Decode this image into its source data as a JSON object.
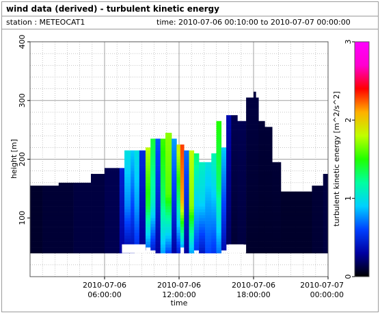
{
  "header": {
    "title": "wind data (derived) - turbulent kinetic energy",
    "station_label": "station : METEOCAT1",
    "time_label": "time: 2010-07-06 00:10:00 to 2010-07-07 00:00:00"
  },
  "colors": {
    "background": "#ffffff",
    "plot_background": "#ffffff",
    "grid": "#a0a0a0",
    "colormap": [
      "#000000",
      "#0000a0",
      "#0040ff",
      "#00d0ff",
      "#00ffa0",
      "#20ff00",
      "#c0ff00",
      "#ffb000",
      "#ff0000",
      "#ff00d0",
      "#ff00ff"
    ]
  },
  "chart_data": {
    "type": "heatmap",
    "title": "wind data (derived) - turbulent kinetic energy",
    "xlabel": "time",
    "ylabel": "height [m]",
    "colorbar_label": "turbulent kinetic energy [m^2/s^2]",
    "x_unit": "hours since 2010-07-06 00:00:00",
    "xlim": [
      0,
      24
    ],
    "ylim": [
      0,
      400
    ],
    "clim": [
      0,
      3
    ],
    "grid": true,
    "x_ticks": [
      {
        "value": 6,
        "date": "2010-07-06",
        "clock": "06:00:00"
      },
      {
        "value": 12,
        "date": "2010-07-06",
        "clock": "12:00:00"
      },
      {
        "value": 18,
        "date": "2010-07-06",
        "clock": "18:00:00"
      },
      {
        "value": 24,
        "date": "2010-07-07",
        "clock": "00:00:00"
      }
    ],
    "y_ticks": [
      {
        "value": 100,
        "label": "100"
      },
      {
        "value": 200,
        "label": "200"
      },
      {
        "value": 300,
        "label": "300"
      },
      {
        "value": 400,
        "label": "400"
      }
    ],
    "colorbar_ticks": [
      {
        "value": 0,
        "label": "0"
      },
      {
        "value": 1,
        "label": "1"
      },
      {
        "value": 2,
        "label": "2"
      },
      {
        "value": 3,
        "label": "3"
      }
    ],
    "columns": [
      {
        "x0": 0.0,
        "x1": 1.0,
        "bottom": 40,
        "top": 155,
        "profile": [
          [
            40,
            0.08
          ],
          [
            155,
            0.08
          ]
        ]
      },
      {
        "x0": 1.0,
        "x1": 2.3,
        "bottom": 40,
        "top": 155,
        "profile": [
          [
            40,
            0.1
          ],
          [
            155,
            0.1
          ]
        ]
      },
      {
        "x0": 2.3,
        "x1": 3.5,
        "bottom": 40,
        "top": 160,
        "profile": [
          [
            40,
            0.1
          ],
          [
            160,
            0.1
          ]
        ]
      },
      {
        "x0": 3.5,
        "x1": 4.9,
        "bottom": 40,
        "top": 160,
        "profile": [
          [
            40,
            0.12
          ],
          [
            160,
            0.12
          ]
        ]
      },
      {
        "x0": 4.9,
        "x1": 6.0,
        "bottom": 40,
        "top": 175,
        "profile": [
          [
            40,
            0.12
          ],
          [
            175,
            0.12
          ]
        ]
      },
      {
        "x0": 6.0,
        "x1": 7.2,
        "bottom": 40,
        "top": 185,
        "profile": [
          [
            40,
            0.15
          ],
          [
            185,
            0.15
          ]
        ]
      },
      {
        "x0": 7.2,
        "x1": 7.6,
        "bottom": 40,
        "top": 185,
        "profile": [
          [
            40,
            0.3
          ],
          [
            185,
            0.45
          ]
        ]
      },
      {
        "x0": 7.6,
        "x1": 8.1,
        "bottom": 40,
        "top": 215,
        "profile": [
          [
            40,
            0.3
          ],
          [
            120,
            0.75
          ],
          [
            215,
            1.0
          ]
        ]
      },
      {
        "x0": 8.1,
        "x1": 8.4,
        "bottom": 40,
        "top": 215,
        "profile": [
          [
            40,
            0.35
          ],
          [
            120,
            0.6
          ],
          [
            215,
            0.9
          ]
        ]
      },
      {
        "x0": 8.4,
        "x1": 8.8,
        "bottom": 45,
        "top": 215,
        "profile": [
          [
            45,
            0.5
          ],
          [
            120,
            0.8
          ],
          [
            215,
            1.0
          ]
        ]
      },
      {
        "x0": 8.8,
        "x1": 9.3,
        "bottom": 45,
        "top": 215,
        "profile": [
          [
            45,
            0.25
          ],
          [
            215,
            0.5
          ]
        ]
      },
      {
        "x0": 9.3,
        "x1": 9.7,
        "bottom": 50,
        "top": 220,
        "profile": [
          [
            50,
            0.7
          ],
          [
            120,
            1.4
          ],
          [
            220,
            1.8
          ]
        ]
      },
      {
        "x0": 9.7,
        "x1": 10.1,
        "bottom": 45,
        "top": 235,
        "profile": [
          [
            45,
            0.45
          ],
          [
            130,
            1.1
          ],
          [
            235,
            1.4
          ]
        ]
      },
      {
        "x0": 10.1,
        "x1": 10.5,
        "bottom": 40,
        "top": 235,
        "profile": [
          [
            40,
            0.3
          ],
          [
            235,
            0.65
          ]
        ]
      },
      {
        "x0": 10.5,
        "x1": 10.9,
        "bottom": 40,
        "top": 235,
        "profile": [
          [
            40,
            0.8
          ],
          [
            130,
            1.3
          ],
          [
            235,
            1.55
          ]
        ]
      },
      {
        "x0": 10.9,
        "x1": 11.4,
        "bottom": 40,
        "top": 245,
        "profile": [
          [
            40,
            0.6
          ],
          [
            140,
            1.6
          ],
          [
            245,
            1.7
          ]
        ]
      },
      {
        "x0": 11.4,
        "x1": 11.8,
        "bottom": 40,
        "top": 235,
        "profile": [
          [
            40,
            0.3
          ],
          [
            235,
            0.8
          ]
        ]
      },
      {
        "x0": 11.8,
        "x1": 12.1,
        "bottom": 40,
        "top": 225,
        "profile": [
          [
            40,
            0.45
          ],
          [
            120,
            1.2
          ],
          [
            225,
            1.9
          ]
        ]
      },
      {
        "x0": 12.1,
        "x1": 12.4,
        "bottom": 50,
        "top": 225,
        "profile": [
          [
            50,
            0.8
          ],
          [
            130,
            2.1
          ],
          [
            225,
            2.3
          ]
        ]
      },
      {
        "x0": 12.4,
        "x1": 12.8,
        "bottom": 40,
        "top": 215,
        "profile": [
          [
            40,
            0.3
          ],
          [
            215,
            0.7
          ]
        ]
      },
      {
        "x0": 12.8,
        "x1": 13.2,
        "bottom": 40,
        "top": 215,
        "profile": [
          [
            40,
            0.8
          ],
          [
            120,
            1.7
          ],
          [
            215,
            1.8
          ]
        ]
      },
      {
        "x0": 13.2,
        "x1": 13.6,
        "bottom": 45,
        "top": 210,
        "profile": [
          [
            45,
            0.55
          ],
          [
            210,
            1.3
          ]
        ]
      },
      {
        "x0": 13.6,
        "x1": 14.1,
        "bottom": 40,
        "top": 195,
        "profile": [
          [
            40,
            0.4
          ],
          [
            130,
            0.95
          ],
          [
            195,
            1.1
          ]
        ]
      },
      {
        "x0": 14.1,
        "x1": 14.6,
        "bottom": 40,
        "top": 195,
        "profile": [
          [
            40,
            0.6
          ],
          [
            195,
            1.0
          ]
        ]
      },
      {
        "x0": 14.6,
        "x1": 15.0,
        "bottom": 40,
        "top": 210,
        "profile": [
          [
            40,
            0.55
          ],
          [
            210,
            1.15
          ]
        ]
      },
      {
        "x0": 15.0,
        "x1": 15.4,
        "bottom": 40,
        "top": 265,
        "profile": [
          [
            40,
            0.7
          ],
          [
            150,
            1.3
          ],
          [
            265,
            1.5
          ]
        ]
      },
      {
        "x0": 15.4,
        "x1": 15.8,
        "bottom": 45,
        "top": 220,
        "profile": [
          [
            45,
            0.35
          ],
          [
            220,
            0.9
          ]
        ]
      },
      {
        "x0": 15.8,
        "x1": 16.2,
        "bottom": 55,
        "top": 275,
        "profile": [
          [
            55,
            0.18
          ],
          [
            275,
            0.35
          ]
        ]
      },
      {
        "x0": 16.2,
        "x1": 16.7,
        "bottom": 55,
        "top": 275,
        "profile": [
          [
            55,
            0.1
          ],
          [
            275,
            0.15
          ]
        ]
      },
      {
        "x0": 16.7,
        "x1": 17.4,
        "bottom": 55,
        "top": 265,
        "profile": [
          [
            55,
            0.12
          ],
          [
            265,
            0.15
          ]
        ]
      },
      {
        "x0": 17.4,
        "x1": 18.4,
        "bottom": 40,
        "top": 305,
        "profile": [
          [
            40,
            0.08
          ],
          [
            305,
            0.12
          ]
        ]
      },
      {
        "x0": 18.4,
        "x1": 18.9,
        "bottom": 40,
        "top": 265,
        "profile": [
          [
            40,
            0.08
          ],
          [
            265,
            0.1
          ]
        ]
      },
      {
        "x0": 18.9,
        "x1": 19.5,
        "bottom": 40,
        "top": 255,
        "profile": [
          [
            40,
            0.08
          ],
          [
            255,
            0.1
          ]
        ]
      },
      {
        "x0": 19.5,
        "x1": 20.2,
        "bottom": 40,
        "top": 195,
        "profile": [
          [
            40,
            0.08
          ],
          [
            195,
            0.1
          ]
        ]
      },
      {
        "x0": 20.2,
        "x1": 21.4,
        "bottom": 40,
        "top": 145,
        "profile": [
          [
            40,
            0.08
          ],
          [
            145,
            0.08
          ]
        ]
      },
      {
        "x0": 21.4,
        "x1": 22.7,
        "bottom": 40,
        "top": 145,
        "profile": [
          [
            40,
            0.08
          ],
          [
            145,
            0.08
          ]
        ]
      },
      {
        "x0": 22.7,
        "x1": 23.6,
        "bottom": 40,
        "top": 155,
        "profile": [
          [
            40,
            0.1
          ],
          [
            155,
            0.1
          ]
        ]
      },
      {
        "x0": 23.6,
        "x1": 24.0,
        "bottom": 40,
        "top": 175,
        "profile": [
          [
            40,
            0.12
          ],
          [
            175,
            0.12
          ]
        ]
      }
    ],
    "gaps": [
      {
        "x0": 7.4,
        "x1": 9.3,
        "y0": 40,
        "y1": 55
      },
      {
        "x0": 16.0,
        "x1": 17.2,
        "y0": 40,
        "y1": 55
      }
    ],
    "spikes": [
      {
        "x0": 18.0,
        "x1": 18.2,
        "y0": 300,
        "y1": 315
      }
    ]
  }
}
